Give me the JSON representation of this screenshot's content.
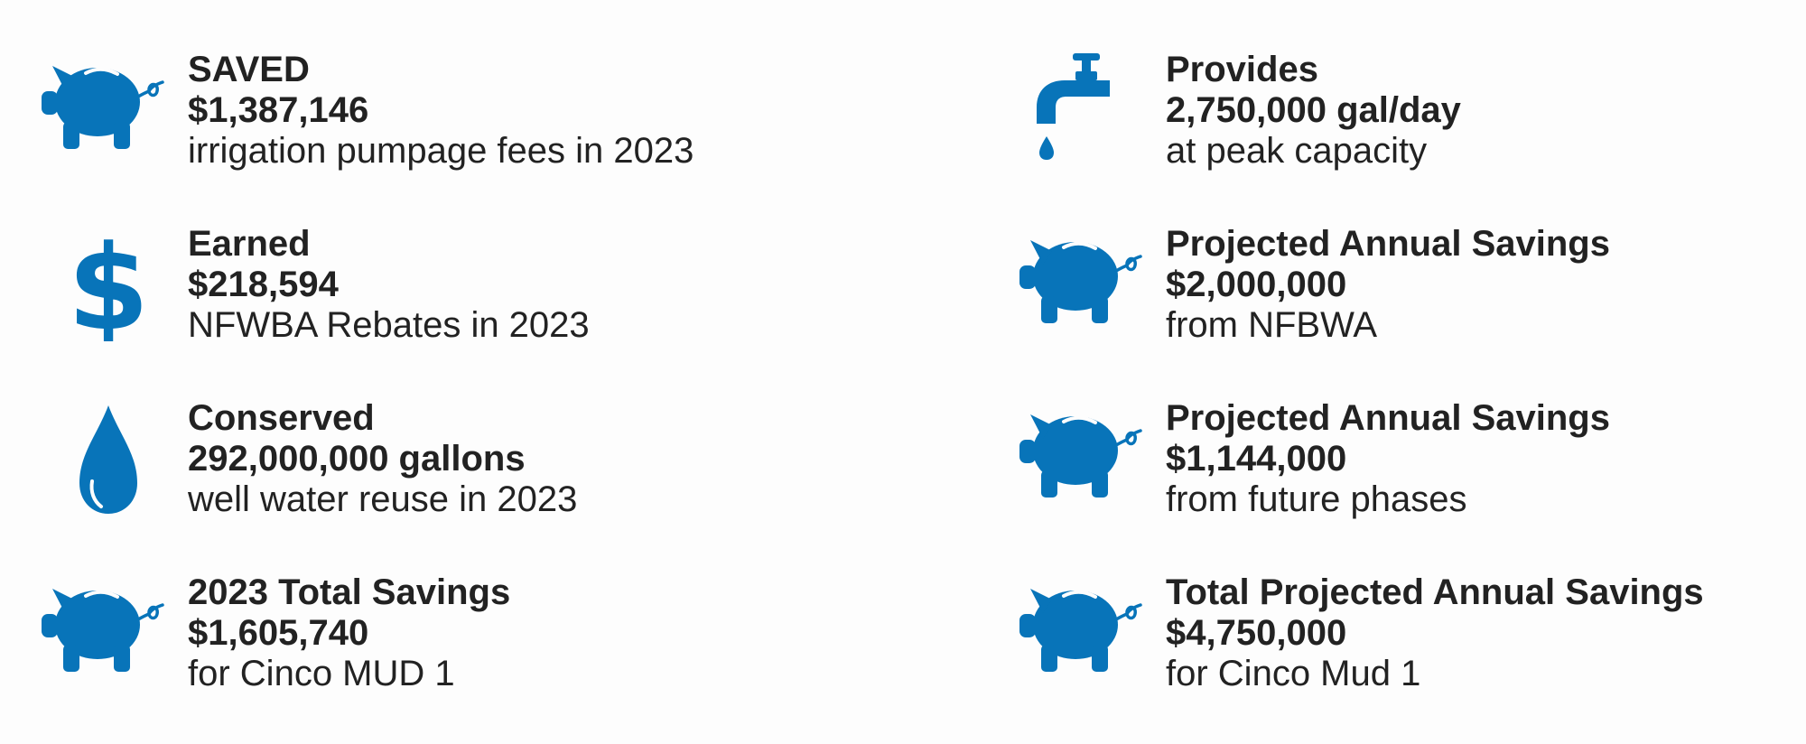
{
  "colors": {
    "icon_blue": "#0874b9",
    "text": "#222222",
    "background": "#fdfdfd"
  },
  "stats": [
    {
      "icon": "piggy-bank-icon",
      "label": "SAVED",
      "value": "$1,387,146",
      "description": "irrigation pumpage fees in 2023"
    },
    {
      "icon": "dollar-sign-icon",
      "label": "Earned",
      "value": "$218,594",
      "description": "NFWBA Rebates in 2023"
    },
    {
      "icon": "water-drop-icon",
      "label": "Conserved",
      "value": "292,000,000 gallons",
      "description": "well water reuse in 2023"
    },
    {
      "icon": "piggy-bank-icon",
      "label": "2023 Total Savings",
      "value": "$1,605,740",
      "description": "for Cinco MUD 1"
    },
    {
      "icon": "faucet-icon",
      "label": "Provides",
      "value": "2,750,000 gal/day",
      "description": "at peak capacity"
    },
    {
      "icon": "piggy-bank-icon",
      "label": "Projected Annual Savings",
      "value": "$2,000,000",
      "description": "from NFBWA"
    },
    {
      "icon": "piggy-bank-icon",
      "label": "Projected Annual Savings",
      "value": "$1,144,000",
      "description": "from future phases"
    },
    {
      "icon": "piggy-bank-icon",
      "label": "Total Projected Annual Savings",
      "value": "$4,750,000",
      "description": "for Cinco Mud 1"
    }
  ]
}
